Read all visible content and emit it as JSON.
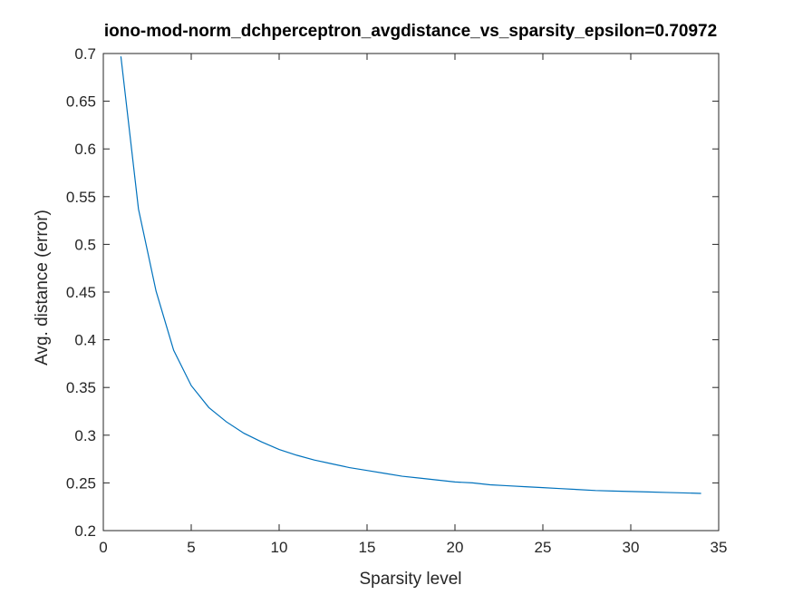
{
  "chart_data": {
    "type": "line",
    "title": "iono-mod-norm_dchperceptron_avgdistance_vs_sparsity_epsilon=0.70972",
    "xlabel": "Sparsity level",
    "ylabel": "Avg. distance (error)",
    "xlim": [
      0,
      35
    ],
    "ylim": [
      0.2,
      0.7
    ],
    "xticks": [
      "0",
      "5",
      "10",
      "15",
      "20",
      "25",
      "30",
      "35"
    ],
    "yticks": [
      "0.2",
      "0.25",
      "0.3",
      "0.35",
      "0.4",
      "0.45",
      "0.5",
      "0.55",
      "0.6",
      "0.65",
      "0.7"
    ],
    "grid": false,
    "box": true,
    "series": [
      {
        "color": "#0072BD",
        "x": [
          1,
          2,
          3,
          4,
          5,
          6,
          7,
          8,
          9,
          10,
          11,
          12,
          13,
          14,
          15,
          16,
          17,
          18,
          19,
          20,
          21,
          22,
          23,
          24,
          25,
          26,
          27,
          28,
          29,
          30,
          31,
          32,
          33,
          34
        ],
        "y": [
          0.697,
          0.537,
          0.451,
          0.389,
          0.352,
          0.329,
          0.314,
          0.302,
          0.293,
          0.285,
          0.279,
          0.274,
          0.27,
          0.266,
          0.263,
          0.26,
          0.257,
          0.255,
          0.253,
          0.251,
          0.25,
          0.248,
          0.247,
          0.246,
          0.245,
          0.244,
          0.243,
          0.242,
          0.2415,
          0.241,
          0.2405,
          0.24,
          0.2395,
          0.239
        ]
      }
    ]
  }
}
